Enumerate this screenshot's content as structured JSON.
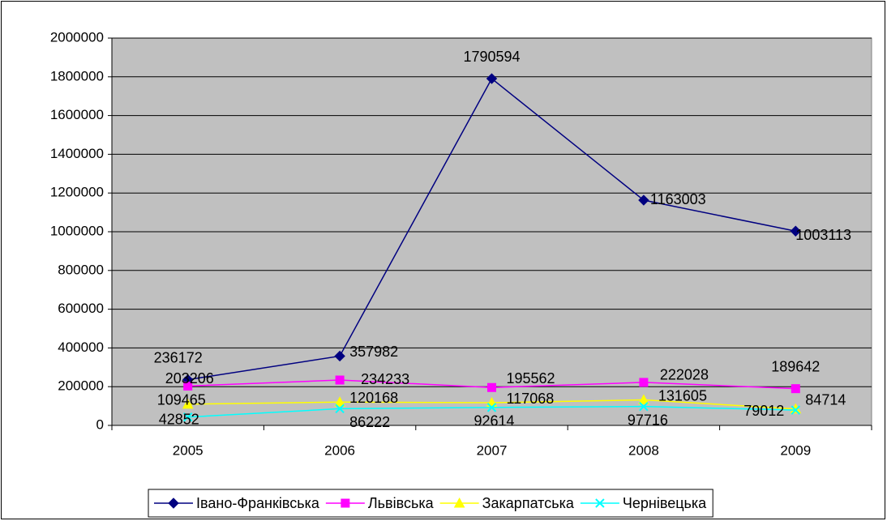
{
  "chart_data": {
    "type": "line",
    "categories": [
      "2005",
      "2006",
      "2007",
      "2008",
      "2009"
    ],
    "series": [
      {
        "name": "Івано-Франківська",
        "color": "#000080",
        "marker": "diamond",
        "values": [
          236172,
          357982,
          1790594,
          1163003,
          1003113
        ]
      },
      {
        "name": "Львівська",
        "color": "#ff00ff",
        "marker": "square",
        "values": [
          203206,
          234233,
          195562,
          222028,
          189642
        ]
      },
      {
        "name": "Закарпатська",
        "color": "#ffff00",
        "marker": "triangle",
        "values": [
          109465,
          120168,
          117068,
          131605,
          84714
        ]
      },
      {
        "name": "Чернівецька",
        "color": "#00ffff",
        "marker": "x",
        "values": [
          42852,
          86222,
          92614,
          97716,
          79012
        ]
      }
    ],
    "ylim": [
      0,
      2000000
    ],
    "yticks": [
      0,
      200000,
      400000,
      600000,
      800000,
      1000000,
      1200000,
      1400000,
      1600000,
      1800000,
      2000000
    ],
    "grid": true,
    "legend": "bottom"
  }
}
